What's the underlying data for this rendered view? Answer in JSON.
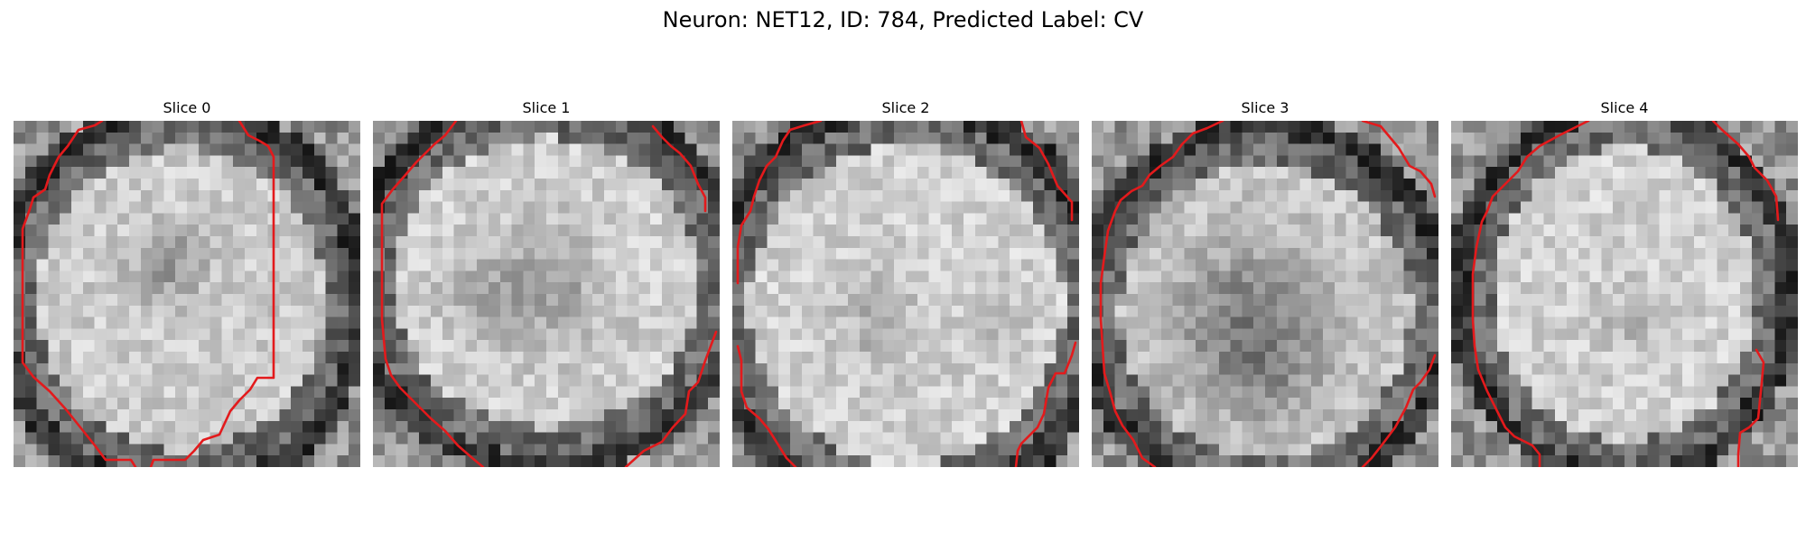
{
  "figure": {
    "title": "Neuron: NET12, ID: 784, Predicted Label: CV",
    "contour_color": "#e31a1c",
    "colormap": "gray"
  },
  "panels": [
    {
      "title": "Slice 0",
      "image": "grayscale microscopy slice of a neuron with red contour outline"
    },
    {
      "title": "Slice 1",
      "image": "grayscale microscopy slice of a neuron with red contour outline"
    },
    {
      "title": "Slice 2",
      "image": "grayscale microscopy slice of a neuron with red contour outline"
    },
    {
      "title": "Slice 3",
      "image": "grayscale microscopy slice of a neuron with red contour outline"
    },
    {
      "title": "Slice 4",
      "image": "grayscale microscopy slice of a neuron with red contour outline"
    }
  ]
}
